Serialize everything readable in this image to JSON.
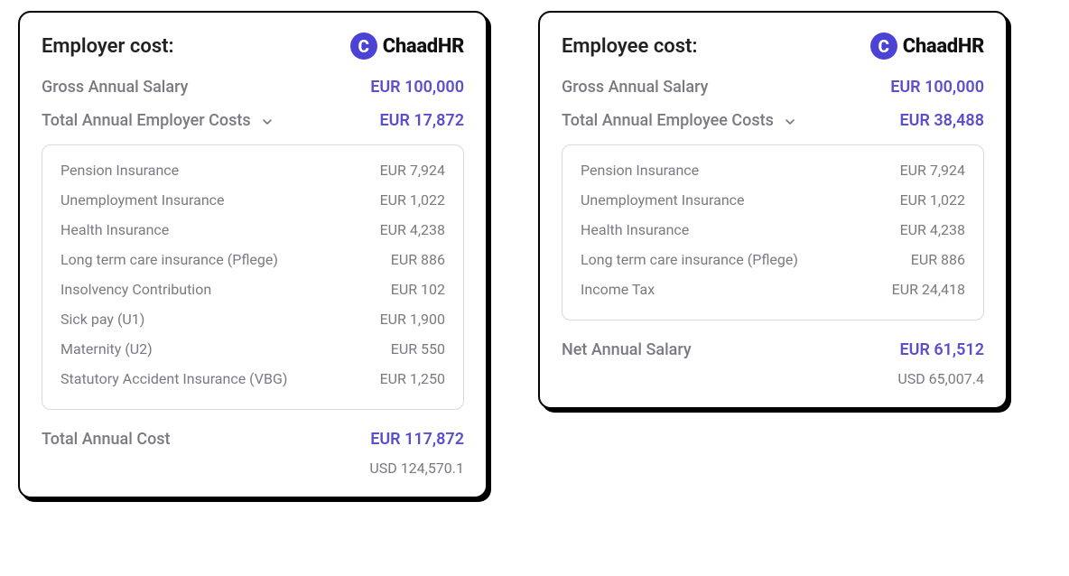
{
  "brand": {
    "name": "ChaadHR",
    "icon_letter": "C",
    "icon_bg": "#4b43d6"
  },
  "accent_color": "#5a4fcf",
  "muted_color": "#7a7a82",
  "employer": {
    "title": "Employer cost:",
    "gross_label": "Gross Annual Salary",
    "gross_value": "EUR 100,000",
    "total_costs_label": "Total Annual Employer Costs",
    "total_costs_value": "EUR 17,872",
    "breakdown": [
      {
        "label": "Pension Insurance",
        "value": "EUR 7,924"
      },
      {
        "label": "Unemployment Insurance",
        "value": "EUR 1,022"
      },
      {
        "label": "Health Insurance",
        "value": "EUR 4,238"
      },
      {
        "label": "Long term care insurance (Pflege)",
        "value": "EUR 886"
      },
      {
        "label": "Insolvency Contribution",
        "value": "EUR 102"
      },
      {
        "label": "Sick pay (U1)",
        "value": "EUR 1,900"
      },
      {
        "label": "Maternity (U2)",
        "value": "EUR 550"
      },
      {
        "label": "Statutory Accident Insurance (VBG)",
        "value": "EUR 1,250"
      }
    ],
    "total_label": "Total Annual Cost",
    "total_value": "EUR 117,872",
    "total_sub": "USD 124,570.1"
  },
  "employee": {
    "title": "Employee cost:",
    "gross_label": "Gross Annual Salary",
    "gross_value": "EUR 100,000",
    "total_costs_label": "Total Annual Employee Costs",
    "total_costs_value": "EUR 38,488",
    "breakdown": [
      {
        "label": "Pension Insurance",
        "value": "EUR 7,924"
      },
      {
        "label": "Unemployment Insurance",
        "value": "EUR 1,022"
      },
      {
        "label": "Health Insurance",
        "value": "EUR 4,238"
      },
      {
        "label": "Long term care insurance (Pflege)",
        "value": "EUR 886"
      },
      {
        "label": "Income Tax",
        "value": "EUR 24,418"
      }
    ],
    "net_label": "Net Annual Salary",
    "net_value": "EUR 61,512",
    "net_sub": "USD 65,007.4"
  }
}
